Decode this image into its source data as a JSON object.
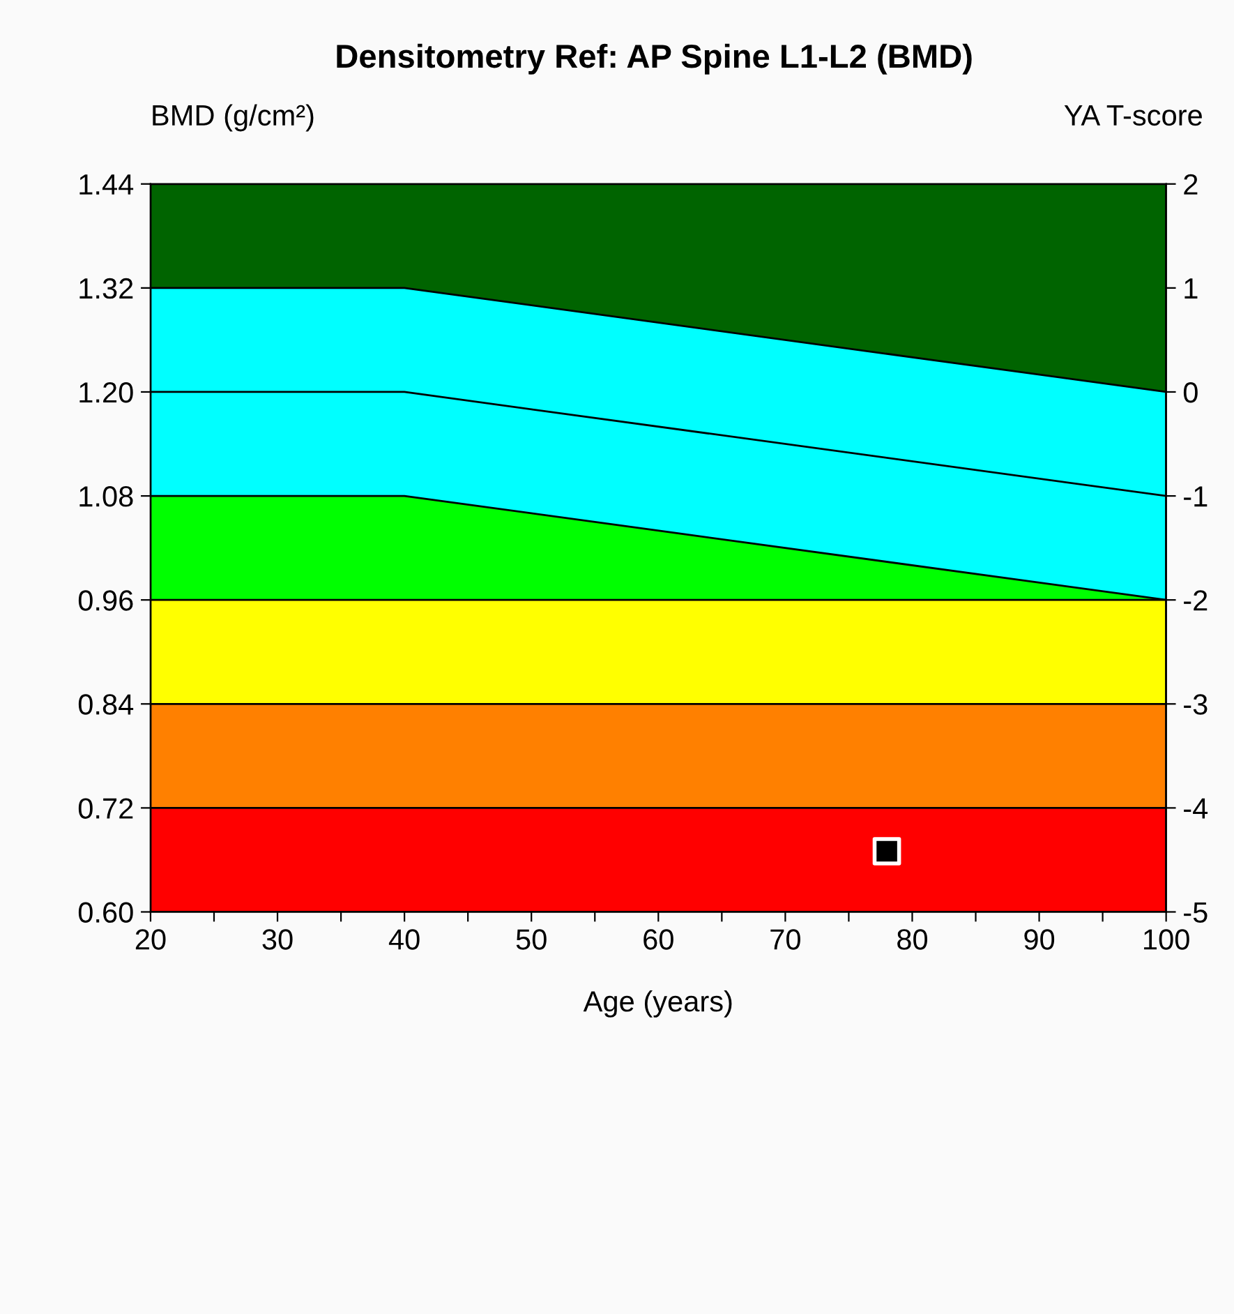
{
  "chart_data": {
    "type": "area",
    "title": "Densitometry Ref: AP Spine L1-L2 (BMD)",
    "xlabel": "Age (years)",
    "ylabel": "BMD (g/cm²)",
    "y2label": "YA T-score",
    "x": [
      20,
      40,
      100
    ],
    "series": [
      {
        "color": "#ff0000",
        "values": [
          0.72,
          0.72,
          0.72
        ]
      },
      {
        "color": "#ff8000",
        "values": [
          0.84,
          0.84,
          0.84
        ]
      },
      {
        "color": "#ffff00",
        "values": [
          0.96,
          0.96,
          0.96
        ]
      },
      {
        "color": "#00ff00",
        "values": [
          1.08,
          1.08,
          0.96
        ]
      },
      {
        "color": "#00ffff",
        "values": [
          1.32,
          1.32,
          1.2
        ]
      },
      {
        "color": "#006400",
        "values": [
          1.44,
          1.44,
          1.44
        ]
      },
      {
        "type": "line",
        "color": "#000000",
        "values": [
          1.2,
          1.2,
          1.08
        ]
      },
      {
        "type": "scatter",
        "color": "#000000",
        "x": [
          78
        ],
        "values": [
          0.67
        ],
        "marker": "square"
      }
    ],
    "xlim": [
      20,
      100
    ],
    "xticks": [
      20,
      {
        "value": 25,
        "label": null
      },
      30,
      {
        "value": 35,
        "label": null
      },
      40,
      {
        "value": 45,
        "label": null
      },
      50,
      {
        "value": 55,
        "label": null
      },
      60,
      {
        "value": 65,
        "label": null
      },
      70,
      {
        "value": 75,
        "label": null
      },
      80,
      {
        "value": 85,
        "label": null
      },
      90,
      {
        "value": 95,
        "label": null
      },
      100
    ],
    "ylim": [
      0.6,
      1.44
    ],
    "yticks": [
      {
        "value": 0.6,
        "label": "0.60"
      },
      {
        "value": 0.72,
        "label": "0.72"
      },
      {
        "value": 0.84,
        "label": "0.84"
      },
      {
        "value": 0.96,
        "label": "0.96"
      },
      {
        "value": 1.08,
        "label": "1.08"
      },
      {
        "value": 1.2,
        "label": "1.20"
      },
      {
        "value": 1.32,
        "label": "1.32"
      },
      {
        "value": 1.44,
        "label": "1.44"
      }
    ],
    "y2lim": [
      -5,
      2
    ],
    "y2ticks": [
      -5,
      -4,
      -3,
      -2,
      -1,
      0,
      1,
      2
    ],
    "grid": false,
    "legend": false
  }
}
